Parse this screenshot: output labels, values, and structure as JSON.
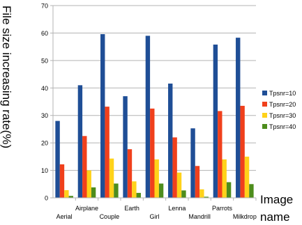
{
  "chart_data": {
    "type": "bar",
    "ylabel": "File size increasing rate(%)",
    "xlabel": "Image name",
    "ylim": [
      0,
      70
    ],
    "yticks": [
      0,
      10,
      20,
      30,
      40,
      50,
      60,
      70
    ],
    "grid": true,
    "legend_position": "right",
    "categories": [
      "Aerial",
      "Airplane",
      "Couple",
      "Earth",
      "Girl",
      "Lenna",
      "Mandrill",
      "Parrots",
      "Milkdrop"
    ],
    "series": [
      {
        "name": "Tpsnr=10",
        "color": "#1f4e96",
        "values": [
          28,
          41,
          59.6,
          37,
          59,
          41.6,
          25.3,
          55.8,
          58.3
        ]
      },
      {
        "name": "Tpsnr=20",
        "color": "#f0401c",
        "values": [
          12.2,
          22.5,
          33.2,
          17.7,
          32.5,
          22,
          11.6,
          31.6,
          33.5
        ]
      },
      {
        "name": "Tpsnr=30",
        "color": "#ffd21a",
        "values": [
          2.8,
          10,
          14.3,
          6,
          14,
          9.2,
          3.1,
          14,
          15
        ]
      },
      {
        "name": "Tpsnr=40",
        "color": "#4d8d1c",
        "values": [
          0.7,
          3.8,
          5.2,
          1.8,
          5.2,
          2.7,
          0.4,
          5.7,
          5
        ]
      }
    ]
  }
}
